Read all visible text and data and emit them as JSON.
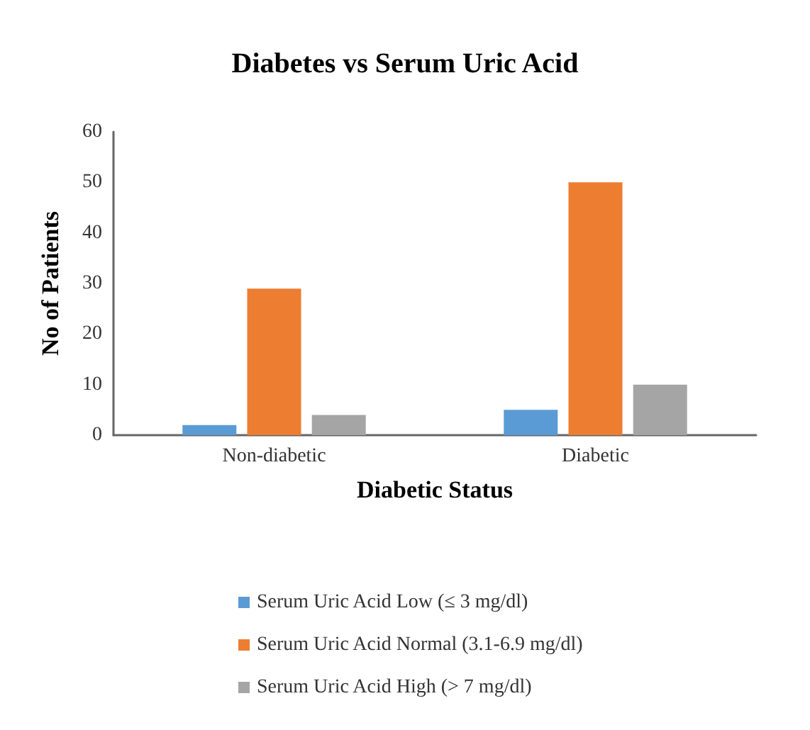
{
  "chart_data": {
    "type": "bar",
    "title": "Diabetes vs Serum Uric Acid",
    "xlabel": "Diabetic Status",
    "ylabel": "No of Patients",
    "categories": [
      "Non-diabetic",
      "Diabetic"
    ],
    "series": [
      {
        "name": "Serum Uric Acid Low (≤ 3 mg/dl)",
        "color": "#5b9bd5",
        "values": [
          2,
          5
        ]
      },
      {
        "name": "Serum Uric Acid Normal (3.1-6.9 mg/dl)",
        "color": "#ed7d31",
        "values": [
          29,
          50
        ]
      },
      {
        "name": "Serum Uric Acid High (> 7 mg/dl)",
        "color": "#a5a5a5",
        "values": [
          4,
          10
        ]
      }
    ],
    "ylim": [
      0,
      60
    ],
    "yticks": [
      0,
      10,
      20,
      30,
      40,
      50,
      60
    ],
    "grid": false,
    "legend": "bottom"
  }
}
